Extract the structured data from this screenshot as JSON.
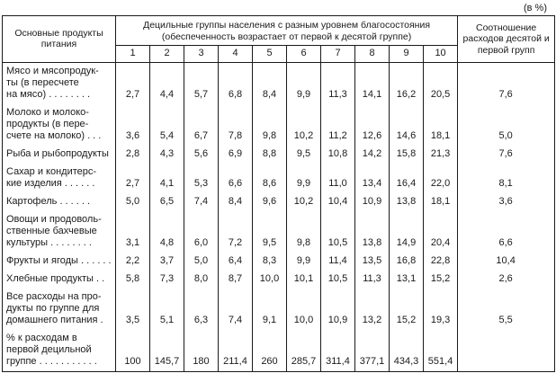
{
  "unit_note": "(в %)",
  "table": {
    "header": {
      "products_col": "Основные продукты питания",
      "decile_group_title": "Децильные группы населения с разным уровнем благосостояния",
      "decile_group_subtitle": "(обеспеченность возрастает от первой к десятой группе)",
      "decile_numbers": [
        "1",
        "2",
        "3",
        "4",
        "5",
        "6",
        "7",
        "8",
        "9",
        "10"
      ],
      "ratio_col": "Соотношение расходов десятой и первой групп"
    },
    "rows": [
      {
        "label": "Мясо и мясопродук-\nты (в пересчете\nна мясо) . . . . . . . .",
        "values": [
          "2,7",
          "4,4",
          "5,7",
          "6,8",
          "8,4",
          "9,9",
          "11,3",
          "14,1",
          "16,2",
          "20,5"
        ],
        "ratio": "7,6"
      },
      {
        "label": "Молоко и молоко-\nпродукты (в пере-\nсчете на молоко) . . .",
        "values": [
          "3,6",
          "5,4",
          "6,7",
          "7,8",
          "9,8",
          "10,2",
          "11,2",
          "12,6",
          "14,6",
          "18,1"
        ],
        "ratio": "5,0"
      },
      {
        "label": "Рыба и рыбопродукты",
        "values": [
          "2,8",
          "4,3",
          "5,6",
          "6,9",
          "8,8",
          "9,5",
          "10,8",
          "14,2",
          "15,8",
          "21,3"
        ],
        "ratio": "7,6"
      },
      {
        "label": "Сахар и кондитерс-\nкие изделия . . . . . .",
        "values": [
          "2,7",
          "4,1",
          "5,3",
          "6,6",
          "8,6",
          "9,9",
          "11,0",
          "13,4",
          "16,4",
          "22,0"
        ],
        "ratio": "8,1"
      },
      {
        "label": "Картофель . . . . . .",
        "values": [
          "5,0",
          "6,5",
          "7,4",
          "8,4",
          "9,6",
          "10,2",
          "10,4",
          "10,9",
          "13,8",
          "18,1"
        ],
        "ratio": "3,6"
      },
      {
        "label": "Овощи и продоволь-\nственные бахчевые\nкультуры . . . . . . . .",
        "values": [
          "3,1",
          "4,8",
          "6,0",
          "7,2",
          "9,5",
          "9,8",
          "10,5",
          "13,8",
          "14,9",
          "20,4"
        ],
        "ratio": "6,6"
      },
      {
        "label": "Фрукты и ягоды . . . . . .",
        "values": [
          "2,2",
          "3,7",
          "5,0",
          "6,4",
          "8,3",
          "9,9",
          "11,4",
          "13,5",
          "16,8",
          "22,8"
        ],
        "ratio": "10,4"
      },
      {
        "label": "Хлебные продукты . .",
        "values": [
          "5,8",
          "7,3",
          "8,0",
          "8,7",
          "10,0",
          "10,1",
          "10,5",
          "11,3",
          "13,1",
          "15,2"
        ],
        "ratio": "2,6"
      },
      {
        "label": "Все расходы на про-\nдукты по группе для\nдомашнего питания .",
        "values": [
          "3,5",
          "5,1",
          "6,3",
          "7,4",
          "9,1",
          "10,0",
          "10,9",
          "13,2",
          "15,2",
          "19,3"
        ],
        "ratio": "5,5"
      },
      {
        "label": "% к расходам в\nпервой децильной\nгруппе . . . . . . . . . . .",
        "values": [
          "100",
          "145,7",
          "180",
          "211,4",
          "260",
          "285,7",
          "311,4",
          "377,1",
          "434,3",
          "551,4"
        ],
        "ratio": ""
      }
    ]
  }
}
